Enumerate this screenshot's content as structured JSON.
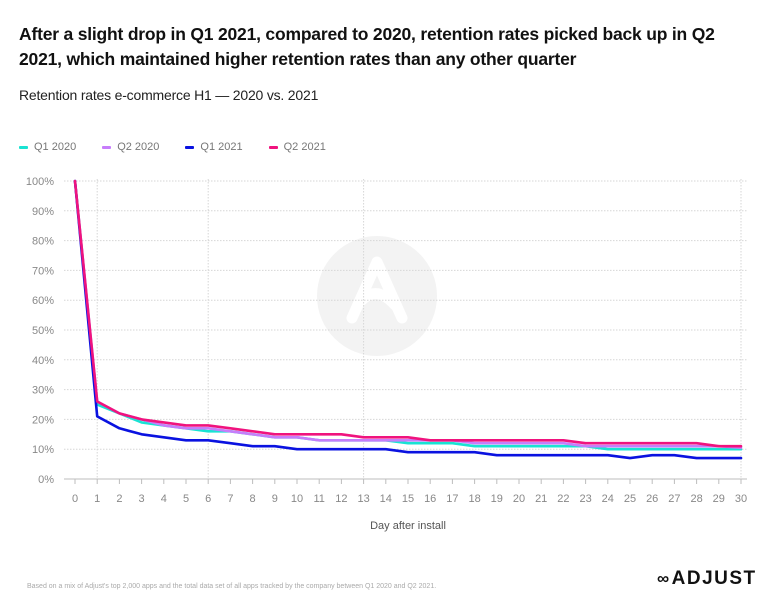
{
  "header": {
    "title": "After a slight drop in Q1 2021, compared to 2020, retention rates picked back up in Q2 2021, which maintained higher retention rates than any other quarter",
    "subtitle": "Retention rates e-commerce H1 — 2020 vs. 2021"
  },
  "footer": {
    "footnote": "Based on a mix of Adjust's top 2,000 apps and the total data set of all apps tracked by the company between Q1 2020 and Q2 2021.",
    "logo_text": "ADJUST",
    "logo_icon": "adjust-logo-icon"
  },
  "watermark_icon": "adjust-watermark-icon",
  "chart_data": {
    "type": "line",
    "title": "Retention rates e-commerce H1 — 2020 vs. 2021",
    "xlabel": "Day after install",
    "ylabel": "",
    "x": [
      0,
      1,
      2,
      3,
      4,
      5,
      6,
      7,
      8,
      9,
      10,
      11,
      12,
      13,
      14,
      15,
      16,
      17,
      18,
      19,
      20,
      21,
      22,
      23,
      24,
      25,
      26,
      27,
      28,
      29,
      30
    ],
    "xlim": [
      0,
      30
    ],
    "ylim": [
      0,
      100
    ],
    "y_ticks": [
      0,
      10,
      20,
      30,
      40,
      50,
      60,
      70,
      80,
      90,
      100
    ],
    "y_tick_labels": [
      "0%",
      "10%",
      "20%",
      "30%",
      "40%",
      "50%",
      "60%",
      "70%",
      "80%",
      "90%",
      "100%"
    ],
    "x_tick_labels": [
      "0",
      "1",
      "2",
      "3",
      "4",
      "5",
      "6",
      "7",
      "8",
      "9",
      "10",
      "11",
      "12",
      "13",
      "14",
      "15",
      "16",
      "17",
      "18",
      "19",
      "20",
      "21",
      "22",
      "23",
      "24",
      "25",
      "26",
      "27",
      "28",
      "29",
      "30"
    ],
    "vertical_grid_days": [
      1,
      6,
      13,
      30
    ],
    "grid": true,
    "legend_position": "top-left",
    "series": [
      {
        "name": "Q1 2020",
        "color": "#19e3d3",
        "values": [
          100,
          25,
          22,
          19,
          18,
          17,
          16,
          16,
          15,
          14,
          14,
          13,
          13,
          13,
          13,
          12,
          12,
          12,
          11,
          11,
          11,
          11,
          11,
          11,
          10,
          10,
          10,
          10,
          10,
          10,
          10
        ]
      },
      {
        "name": "Q2 2020",
        "color": "#c77dfb",
        "values": [
          100,
          26,
          22,
          20,
          18,
          17,
          17,
          16,
          15,
          14,
          14,
          13,
          13,
          13,
          13,
          13,
          13,
          13,
          12,
          12,
          12,
          12,
          12,
          11,
          11,
          11,
          11,
          11,
          11,
          11,
          10.5
        ]
      },
      {
        "name": "Q1 2021",
        "color": "#0a12e0",
        "values": [
          100,
          21,
          17,
          15,
          14,
          13,
          13,
          12,
          11,
          11,
          10,
          10,
          10,
          10,
          10,
          9,
          9,
          9,
          9,
          8,
          8,
          8,
          8,
          8,
          8,
          7,
          8,
          8,
          7,
          7,
          7
        ]
      },
      {
        "name": "Q2 2021",
        "color": "#f0137e",
        "values": [
          100,
          26,
          22,
          20,
          19,
          18,
          18,
          17,
          16,
          15,
          15,
          15,
          15,
          14,
          14,
          14,
          13,
          13,
          13,
          13,
          13,
          13,
          13,
          12,
          12,
          12,
          12,
          12,
          12,
          11,
          11
        ]
      }
    ]
  }
}
